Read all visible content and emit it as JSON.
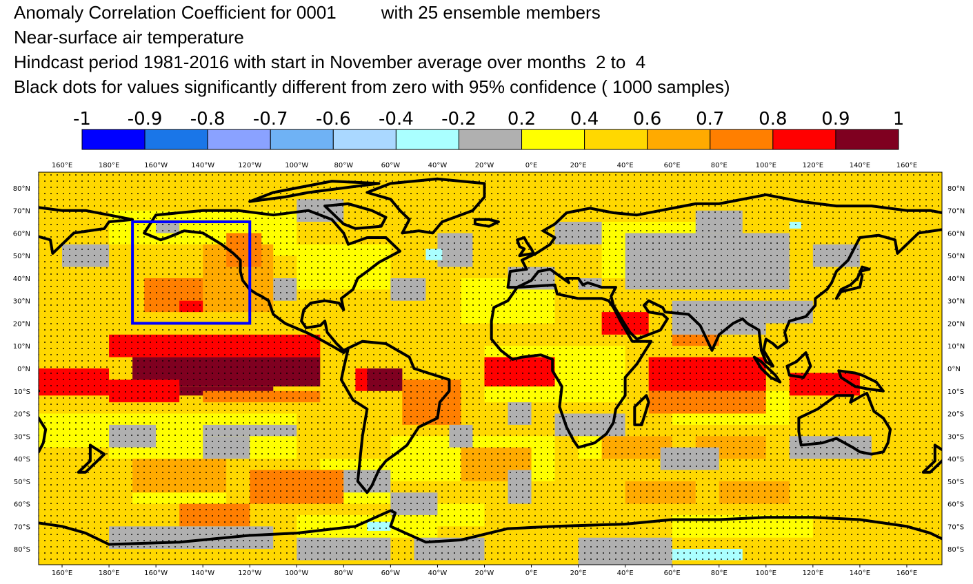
{
  "title_lines": [
    "Anomaly Correlation Coefficient for 0001         with 25 ensemble members",
    "Near-surface air temperature",
    "Hindcast period 1981-2016 with start in November average over months  2 to  4",
    "Black dots for values significantly different from zero with 95% confidence ( 1000 samples)"
  ],
  "colorbar": {
    "labels": [
      "-1",
      "-0.9",
      "-0.8",
      "-0.7",
      "-0.6",
      "-0.4",
      "-0.2",
      "0.2",
      "0.4",
      "0.6",
      "0.7",
      "0.8",
      "0.9",
      "1"
    ],
    "colors": [
      "#0000ff",
      "#1a76e8",
      "#8aa2ff",
      "#6fb2f5",
      "#aad8ff",
      "#aaffff",
      "#b0b0b0",
      "#ffff00",
      "#ffd800",
      "#ffaa00",
      "#ff7f00",
      "#ff0000",
      "#7f0020"
    ]
  },
  "map": {
    "top_lon_labels": [
      "160°E",
      "180°E",
      "160°W",
      "140°W",
      "120°W",
      "100°W",
      "80°W",
      "60°W",
      "40°W",
      "20°W",
      "0°E",
      "20°E",
      "40°E",
      "60°E",
      "80°E",
      "100°E",
      "120°E",
      "140°E",
      "160°E"
    ],
    "bottom_lon_labels": [
      "160°E",
      "180°E",
      "160°W",
      "140°W",
      "120°W",
      "100°W",
      "80°W",
      "60°W",
      "40°W",
      "20°W",
      "0°E",
      "20°E",
      "40°E",
      "60°E",
      "80°E",
      "100°E",
      "120°E",
      "140°E",
      "160°E"
    ],
    "left_lat_labels": [
      "80°N",
      "70°N",
      "60°N",
      "50°N",
      "40°N",
      "30°N",
      "20°N",
      "10°N",
      "0°N",
      "10°S",
      "20°S",
      "30°S",
      "40°S",
      "50°S",
      "60°S",
      "70°S",
      "80°S"
    ],
    "right_lat_labels": [
      "80°N",
      "70°N",
      "60°N",
      "50°N",
      "40°N",
      "30°N",
      "20°N",
      "10°N",
      "0°N",
      "10°S",
      "20°S",
      "30°S",
      "40°S",
      "50°S",
      "60°S",
      "70°S",
      "80°S"
    ],
    "region_box": {
      "lon_west": -170,
      "lon_east": -120,
      "lat_south": 20,
      "lat_north": 65,
      "color": "#0000ff"
    },
    "background_color": "#ffd800",
    "coastline_color": "#000000"
  }
}
